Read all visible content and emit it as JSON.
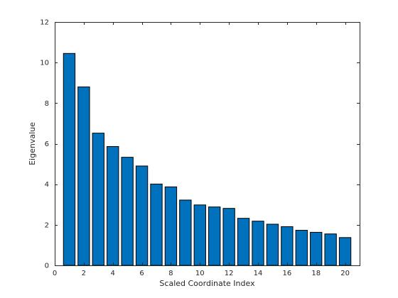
{
  "chart_data": {
    "type": "bar",
    "title": "",
    "xlabel": "Scaled Coordinate Index",
    "ylabel": "Eigenvalue",
    "xlim": [
      0,
      21
    ],
    "ylim": [
      0,
      12
    ],
    "x_ticks": [
      0,
      2,
      4,
      6,
      8,
      10,
      12,
      14,
      16,
      18,
      20
    ],
    "y_ticks": [
      0,
      2,
      4,
      6,
      8,
      10,
      12
    ],
    "grid": false,
    "bar_color": "#0072BD",
    "bar_edge_color": "#000000",
    "x": [
      1,
      2,
      3,
      4,
      5,
      6,
      7,
      8,
      9,
      10,
      11,
      12,
      13,
      14,
      15,
      16,
      17,
      18,
      19,
      20
    ],
    "values": [
      10.45,
      8.8,
      6.52,
      5.86,
      5.33,
      4.9,
      4.01,
      3.87,
      3.22,
      2.98,
      2.88,
      2.81,
      2.32,
      2.18,
      2.03,
      1.91,
      1.73,
      1.63,
      1.55,
      1.37
    ]
  }
}
